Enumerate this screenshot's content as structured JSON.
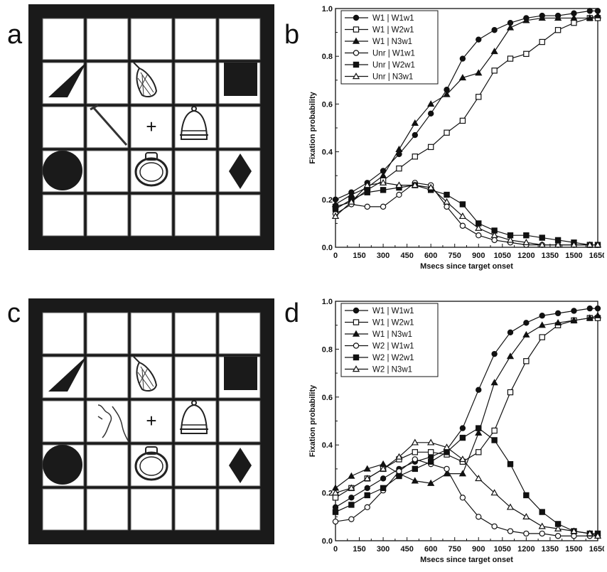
{
  "panels": {
    "a": "a",
    "b": "b",
    "c": "c",
    "d": "d"
  },
  "grid_a": {
    "center_mark": "+",
    "items": [
      "triangle-shape",
      "net-picture",
      "black-square-shape",
      "nail-picture",
      "bell-picture",
      "circle-shape",
      "ring-picture",
      "diamond-shape"
    ]
  },
  "grid_c": {
    "center_mark": "+",
    "items": [
      "triangle-shape",
      "net-picture",
      "black-square-shape",
      "neck-picture",
      "bell-picture",
      "circle-shape",
      "ring-picture",
      "diamond-shape"
    ]
  },
  "chart_data": [
    {
      "type": "line",
      "xlabel": "Msecs since target onset",
      "ylabel": "Fixation probability",
      "xlim": [
        0,
        1650
      ],
      "ylim": [
        0,
        1.0
      ],
      "xticks": [
        "0",
        "150",
        "300",
        "450",
        "600",
        "750",
        "900",
        "1050",
        "1200",
        "1350",
        "1500",
        "1650"
      ],
      "yticks": [
        "0.0",
        "0.2",
        "0.4",
        "0.6",
        "0.8",
        "1.0"
      ],
      "legend_position": "top-left",
      "grid": false,
      "series": [
        {
          "name": "W1 | W1w1",
          "marker": "filled-circle",
          "x": [
            0,
            100,
            200,
            300,
            400,
            500,
            600,
            700,
            800,
            900,
            1000,
            1100,
            1200,
            1300,
            1400,
            1500,
            1600,
            1650
          ],
          "y": [
            0.2,
            0.23,
            0.27,
            0.32,
            0.39,
            0.47,
            0.56,
            0.66,
            0.79,
            0.87,
            0.91,
            0.94,
            0.96,
            0.97,
            0.97,
            0.98,
            0.99,
            0.99
          ]
        },
        {
          "name": "W1 | W2w1",
          "marker": "open-square",
          "x": [
            0,
            100,
            200,
            300,
            400,
            500,
            600,
            700,
            800,
            900,
            1000,
            1100,
            1200,
            1300,
            1400,
            1500,
            1600,
            1650
          ],
          "y": [
            0.17,
            0.19,
            0.24,
            0.28,
            0.33,
            0.38,
            0.42,
            0.48,
            0.53,
            0.63,
            0.74,
            0.79,
            0.81,
            0.86,
            0.91,
            0.94,
            0.96,
            0.96
          ]
        },
        {
          "name": "W1 | N3w1",
          "marker": "filled-triangle",
          "x": [
            0,
            100,
            200,
            300,
            400,
            500,
            600,
            700,
            800,
            900,
            1000,
            1100,
            1200,
            1300,
            1400,
            1500,
            1600,
            1650
          ],
          "y": [
            0.18,
            0.22,
            0.25,
            0.3,
            0.41,
            0.52,
            0.6,
            0.64,
            0.71,
            0.73,
            0.82,
            0.92,
            0.95,
            0.96,
            0.96,
            0.96,
            0.96,
            0.97
          ]
        },
        {
          "name": "Unr | W1w1",
          "marker": "open-circle",
          "x": [
            0,
            100,
            200,
            300,
            400,
            500,
            600,
            700,
            800,
            900,
            1000,
            1100,
            1200,
            1300,
            1400,
            1500,
            1600,
            1650
          ],
          "y": [
            0.14,
            0.18,
            0.17,
            0.17,
            0.22,
            0.27,
            0.26,
            0.17,
            0.09,
            0.05,
            0.03,
            0.02,
            0.01,
            0.01,
            0.01,
            0.01,
            0.01,
            0.01
          ]
        },
        {
          "name": "Unr | W2w1",
          "marker": "filled-square",
          "x": [
            0,
            100,
            200,
            300,
            400,
            500,
            600,
            700,
            800,
            900,
            1000,
            1100,
            1200,
            1300,
            1400,
            1500,
            1600,
            1650
          ],
          "y": [
            0.16,
            0.2,
            0.23,
            0.24,
            0.25,
            0.26,
            0.24,
            0.22,
            0.18,
            0.1,
            0.07,
            0.05,
            0.05,
            0.04,
            0.03,
            0.02,
            0.01,
            0.01
          ]
        },
        {
          "name": "Unr | N3w1",
          "marker": "open-triangle",
          "x": [
            0,
            100,
            200,
            300,
            400,
            500,
            600,
            700,
            800,
            900,
            1000,
            1100,
            1200,
            1300,
            1400,
            1500,
            1600,
            1650
          ],
          "y": [
            0.13,
            0.19,
            0.26,
            0.27,
            0.26,
            0.26,
            0.25,
            0.19,
            0.13,
            0.08,
            0.05,
            0.03,
            0.02,
            0.01,
            0.01,
            0.01,
            0.01,
            0.01
          ]
        }
      ]
    },
    {
      "type": "line",
      "xlabel": "Msecs since target onset",
      "ylabel": "Fixation probability",
      "xlim": [
        0,
        1650
      ],
      "ylim": [
        0,
        1.0
      ],
      "xticks": [
        "0",
        "150",
        "300",
        "450",
        "600",
        "750",
        "900",
        "1050",
        "1200",
        "1350",
        "1500",
        "1650"
      ],
      "yticks": [
        "0.0",
        "0.2",
        "0.4",
        "0.6",
        "0.8",
        "1.0"
      ],
      "legend_position": "top-left",
      "grid": false,
      "series": [
        {
          "name": "W1 | W1w1",
          "marker": "filled-circle",
          "x": [
            0,
            100,
            200,
            300,
            400,
            500,
            600,
            700,
            800,
            900,
            1000,
            1100,
            1200,
            1300,
            1400,
            1500,
            1600,
            1650
          ],
          "y": [
            0.14,
            0.18,
            0.22,
            0.26,
            0.3,
            0.33,
            0.35,
            0.38,
            0.47,
            0.63,
            0.78,
            0.87,
            0.91,
            0.94,
            0.95,
            0.96,
            0.97,
            0.97
          ]
        },
        {
          "name": "W1 | W2w1",
          "marker": "open-square",
          "x": [
            0,
            100,
            200,
            300,
            400,
            500,
            600,
            700,
            800,
            900,
            1000,
            1100,
            1200,
            1300,
            1400,
            1500,
            1600,
            1650
          ],
          "y": [
            0.18,
            0.22,
            0.26,
            0.3,
            0.34,
            0.37,
            0.37,
            0.36,
            0.33,
            0.37,
            0.46,
            0.62,
            0.75,
            0.85,
            0.9,
            0.92,
            0.93,
            0.93
          ]
        },
        {
          "name": "W1 | N3w1",
          "marker": "filled-triangle",
          "x": [
            0,
            100,
            200,
            300,
            400,
            500,
            600,
            700,
            800,
            900,
            1000,
            1100,
            1200,
            1300,
            1400,
            1500,
            1600,
            1650
          ],
          "y": [
            0.22,
            0.27,
            0.3,
            0.32,
            0.28,
            0.25,
            0.24,
            0.28,
            0.28,
            0.45,
            0.66,
            0.77,
            0.86,
            0.9,
            0.91,
            0.92,
            0.93,
            0.94
          ]
        },
        {
          "name": "W2 | W1w1",
          "marker": "open-circle",
          "x": [
            0,
            100,
            200,
            300,
            400,
            500,
            600,
            700,
            800,
            900,
            1000,
            1100,
            1200,
            1300,
            1400,
            1500,
            1600,
            1650
          ],
          "y": [
            0.08,
            0.09,
            0.14,
            0.21,
            0.29,
            0.34,
            0.32,
            0.3,
            0.18,
            0.1,
            0.06,
            0.04,
            0.03,
            0.03,
            0.02,
            0.02,
            0.02,
            0.02
          ]
        },
        {
          "name": "W2 | W2w1",
          "marker": "filled-square",
          "x": [
            0,
            100,
            200,
            300,
            400,
            500,
            600,
            700,
            800,
            900,
            1000,
            1100,
            1200,
            1300,
            1400,
            1500,
            1600,
            1650
          ],
          "y": [
            0.12,
            0.15,
            0.19,
            0.22,
            0.27,
            0.3,
            0.33,
            0.37,
            0.43,
            0.47,
            0.42,
            0.32,
            0.19,
            0.12,
            0.07,
            0.04,
            0.03,
            0.03
          ]
        },
        {
          "name": "W2 | N3w1",
          "marker": "open-triangle",
          "x": [
            0,
            100,
            200,
            300,
            400,
            500,
            600,
            700,
            800,
            900,
            1000,
            1100,
            1200,
            1300,
            1400,
            1500,
            1600,
            1650
          ],
          "y": [
            0.2,
            0.22,
            0.26,
            0.3,
            0.35,
            0.41,
            0.41,
            0.39,
            0.34,
            0.26,
            0.2,
            0.14,
            0.1,
            0.06,
            0.05,
            0.04,
            0.03,
            0.02
          ]
        }
      ]
    }
  ]
}
